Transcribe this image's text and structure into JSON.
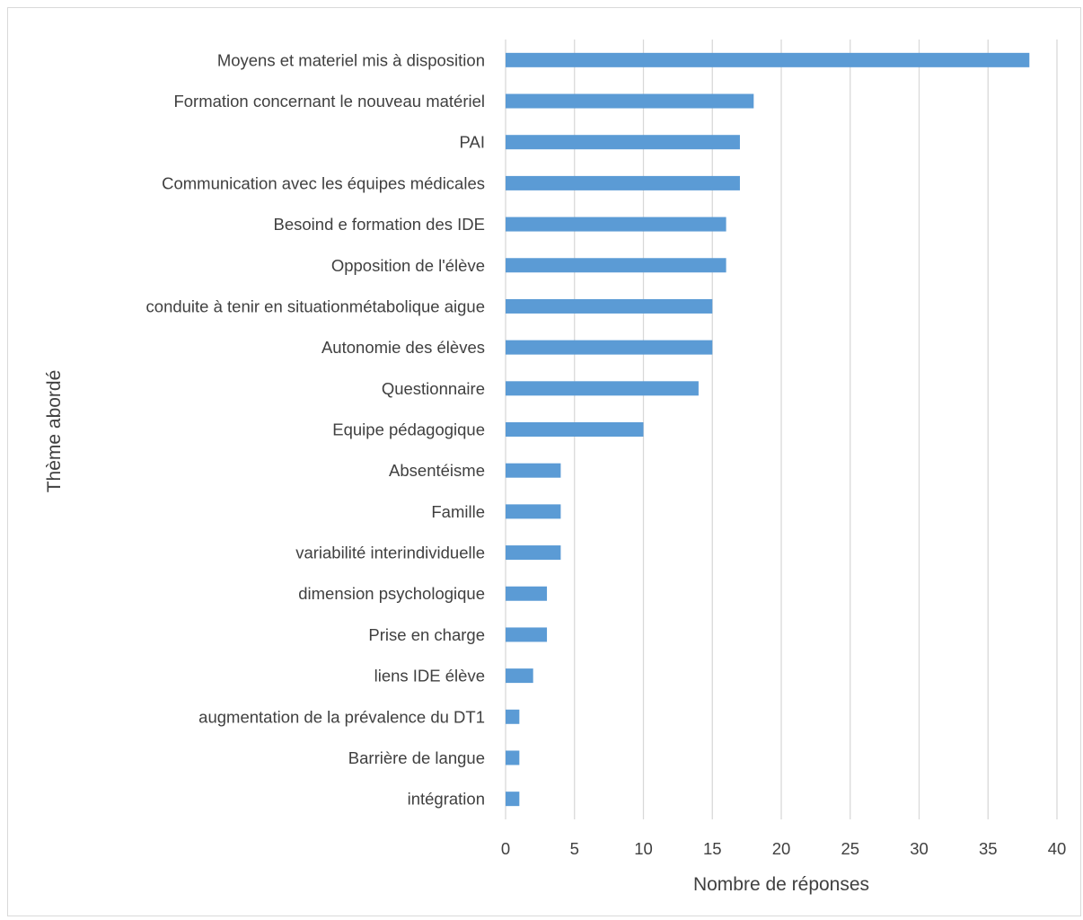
{
  "chart_data": {
    "type": "bar",
    "orientation": "horizontal",
    "categories": [
      "Moyens et materiel mis à disposition",
      "Formation concernant le nouveau matériel",
      "PAI",
      "Communication avec les équipes médicales",
      "Besoind e formation des IDE",
      "Opposition de l'élève",
      "conduite à tenir en situationmétabolique aigue",
      "Autonomie des élèves",
      "Questionnaire",
      "Equipe pédagogique",
      "Absentéisme",
      "Famille",
      "variabilité interindividuelle",
      "dimension psychologique",
      "Prise en charge",
      "liens IDE élève",
      "augmentation de la prévalence du DT1",
      "Barrière de langue",
      "intégration"
    ],
    "values": [
      38,
      18,
      17,
      17,
      16,
      16,
      15,
      15,
      14,
      10,
      4,
      4,
      4,
      3,
      3,
      2,
      1,
      1,
      1
    ],
    "xlabel": "Nombre de réponses",
    "ylabel": "Thème abordé",
    "xlim": [
      0,
      40
    ],
    "xticks": [
      "0",
      "5",
      "10",
      "15",
      "20",
      "25",
      "30",
      "35",
      "40"
    ],
    "grid": "vertical",
    "bar_color": "#5b9bd5",
    "grid_color": "#d9d9d9"
  }
}
